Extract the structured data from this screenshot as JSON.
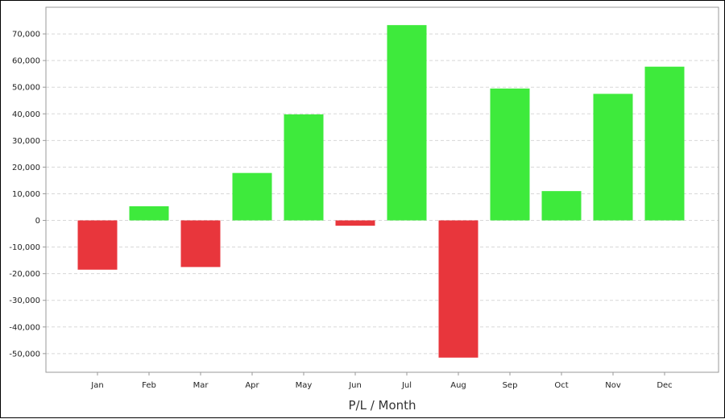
{
  "chart_data": {
    "type": "bar",
    "title": "",
    "xlabel": "P/L / Month",
    "ylabel": "",
    "categories": [
      "Jan",
      "Feb",
      "Mar",
      "Apr",
      "May",
      "Jun",
      "Jul",
      "Aug",
      "Sep",
      "Oct",
      "Nov",
      "Dec"
    ],
    "values": [
      -18500,
      5300,
      -17500,
      17800,
      39800,
      -2000,
      73300,
      -51500,
      49500,
      11000,
      47500,
      57700
    ],
    "ylim": [
      -57000,
      80000
    ],
    "yticks": [
      70000,
      60000,
      50000,
      40000,
      30000,
      20000,
      10000,
      0,
      -10000,
      -20000,
      -30000,
      -40000,
      -50000
    ],
    "ytick_labels": [
      "70,000",
      "60,000",
      "50,000",
      "40,000",
      "30,000",
      "20,000",
      "10,000",
      "0",
      "-10,000",
      "-20,000",
      "-30,000",
      "-40,000",
      "-50,000"
    ],
    "grid": true,
    "legend": "none",
    "colors": {
      "positive": "#3eea3c",
      "negative": "#e8363c",
      "grid": "#d8d8d8",
      "plot_border": "#9a9a9a"
    }
  }
}
